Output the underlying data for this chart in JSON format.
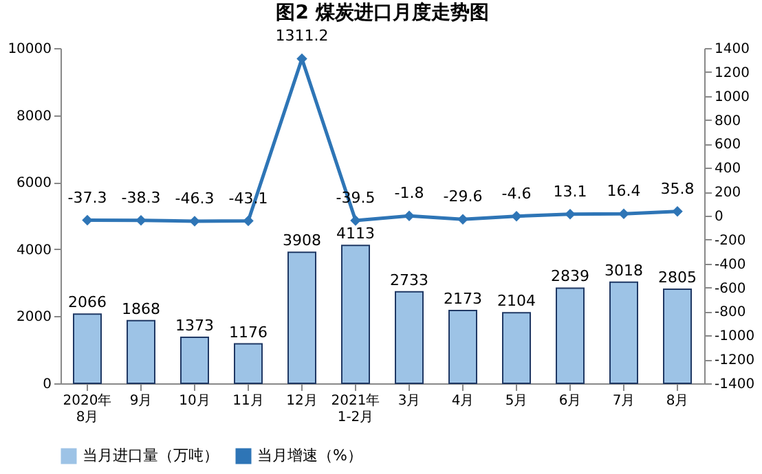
{
  "chart_data": {
    "type": "bar",
    "title": "图2 煤炭进口月度走势图",
    "categories": [
      "2020年\n8月",
      "9月",
      "10月",
      "11月",
      "12月",
      "2021年\n1-2月",
      "3月",
      "4月",
      "5月",
      "6月",
      "7月",
      "8月"
    ],
    "series": [
      {
        "name": "当月进口量（万吨）",
        "color": "#9dc3e6",
        "values": [
          2066,
          1868,
          1373,
          1176,
          3908,
          4113,
          2733,
          2173,
          2104,
          2839,
          3018,
          2805
        ]
      },
      {
        "name": "当月增速（%）",
        "type": "line",
        "axis": "y2",
        "marker": "diamond",
        "color": "#2e75b6",
        "values": [
          -37.3,
          -38.3,
          -46.3,
          -43.1,
          1311.2,
          -39.5,
          -1.8,
          -29.6,
          -4.6,
          13.1,
          16.4,
          35.8
        ]
      }
    ],
    "ylim": [
      0,
      10000
    ],
    "yticks": [
      0,
      2000,
      4000,
      6000,
      8000,
      10000
    ],
    "y2lim": [
      -1400,
      1400
    ],
    "y2ticks": [
      -1400,
      -1200,
      -1000,
      -800,
      -600,
      -400,
      -200,
      0,
      200,
      400,
      600,
      800,
      1000,
      1200,
      1400
    ],
    "data_labels": true,
    "legend": "bottom",
    "grid": false
  }
}
